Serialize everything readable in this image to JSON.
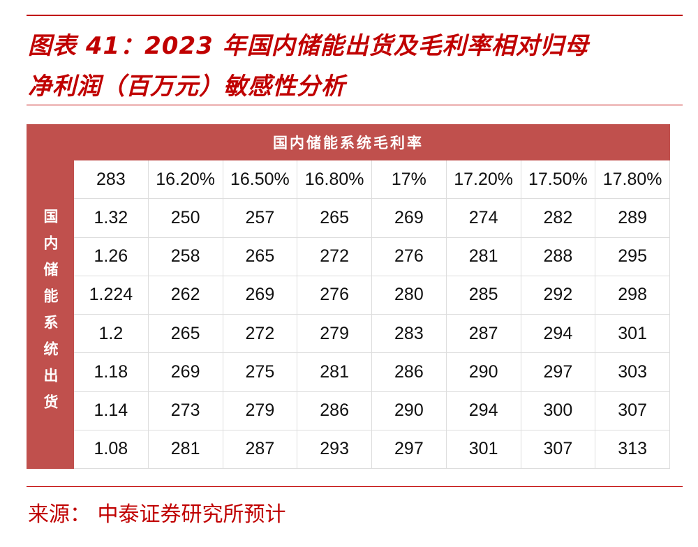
{
  "title": {
    "line1": "图表 41：2023 年国内储能出货及毛利率相对归母",
    "line2": "净利润（百万元）敏感性分析"
  },
  "table": {
    "column_header": "国内储能系统毛利率",
    "row_header": "国内储能系统出货",
    "rows": [
      [
        "283",
        "16.20%",
        "16.50%",
        "16.80%",
        "17%",
        "17.20%",
        "17.50%",
        "17.80%"
      ],
      [
        "1.32",
        "250",
        "257",
        "265",
        "269",
        "274",
        "282",
        "289"
      ],
      [
        "1.26",
        "258",
        "265",
        "272",
        "276",
        "281",
        "288",
        "295"
      ],
      [
        "1.224",
        "262",
        "269",
        "276",
        "280",
        "285",
        "292",
        "298"
      ],
      [
        "1.2",
        "265",
        "272",
        "279",
        "283",
        "287",
        "294",
        "301"
      ],
      [
        "1.18",
        "269",
        "275",
        "281",
        "286",
        "290",
        "297",
        "303"
      ],
      [
        "1.14",
        "273",
        "279",
        "286",
        "290",
        "294",
        "300",
        "307"
      ],
      [
        "1.08",
        "281",
        "287",
        "293",
        "297",
        "301",
        "307",
        "313"
      ]
    ]
  },
  "source": "来源： 中泰证券研究所预计"
}
